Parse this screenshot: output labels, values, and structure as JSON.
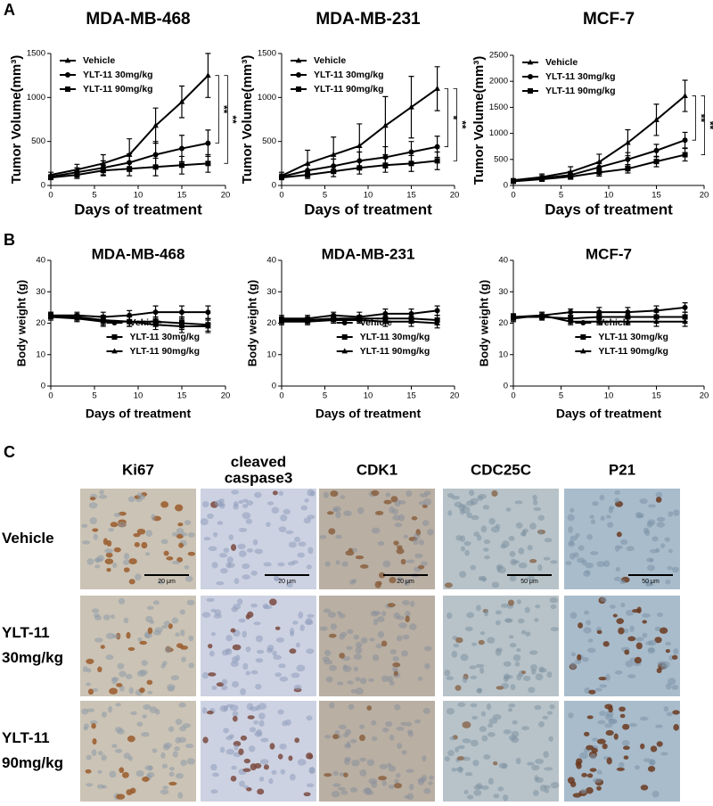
{
  "panel_labels": [
    "A",
    "B",
    "C"
  ],
  "chart_data": [
    {
      "type": "line",
      "title": "MDA-MB-468",
      "xlabel": "Days of treatment",
      "ylabel": "Tumor Volume(mm³)",
      "x": [
        0,
        3,
        6,
        9,
        12,
        15,
        18
      ],
      "xlim": [
        0,
        20
      ],
      "xticks": [
        0,
        5,
        10,
        15,
        20
      ],
      "ylim": [
        0,
        1500
      ],
      "yticks": [
        0,
        500,
        1000,
        1500
      ],
      "legend": "upper left",
      "series": [
        {
          "name": "Vehicle",
          "marker": "triangle",
          "color": "#000000",
          "values": [
            120,
            180,
            250,
            350,
            680,
            950,
            1250
          ],
          "errors": [
            30,
            60,
            100,
            180,
            200,
            180,
            250
          ]
        },
        {
          "name": "YLT-11 30mg/kg",
          "marker": "circle",
          "color": "#000000",
          "values": [
            100,
            150,
            200,
            260,
            350,
            420,
            480
          ],
          "errors": [
            20,
            50,
            80,
            100,
            150,
            150,
            150
          ]
        },
        {
          "name": "YLT-11 90mg/kg",
          "marker": "square",
          "color": "#000000",
          "values": [
            90,
            120,
            170,
            190,
            210,
            230,
            250
          ],
          "errors": [
            20,
            40,
            60,
            80,
            100,
            100,
            100
          ]
        }
      ],
      "annotations": [
        "**",
        "**"
      ]
    },
    {
      "type": "line",
      "title": "MDA-MB-231",
      "xlabel": "Days of treatment",
      "ylabel": "Tumor Volume(mm³)",
      "x": [
        0,
        3,
        6,
        9,
        12,
        15,
        18
      ],
      "xlim": [
        0,
        20
      ],
      "xticks": [
        0,
        5,
        10,
        15,
        20
      ],
      "ylim": [
        0,
        1500
      ],
      "yticks": [
        0,
        500,
        1000,
        1500
      ],
      "legend": "upper left",
      "series": [
        {
          "name": "Vehicle",
          "marker": "triangle",
          "color": "#000000",
          "values": [
            110,
            250,
            350,
            450,
            680,
            890,
            1100
          ],
          "errors": [
            40,
            150,
            200,
            250,
            330,
            350,
            250
          ]
        },
        {
          "name": "YLT-11 30mg/kg",
          "marker": "circle",
          "color": "#000000",
          "values": [
            100,
            170,
            220,
            280,
            320,
            380,
            440
          ],
          "errors": [
            30,
            60,
            80,
            100,
            120,
            120,
            120
          ]
        },
        {
          "name": "YLT-11 90mg/kg",
          "marker": "square",
          "color": "#000000",
          "values": [
            90,
            120,
            160,
            200,
            230,
            250,
            280
          ],
          "errors": [
            20,
            40,
            60,
            70,
            80,
            90,
            100
          ]
        }
      ],
      "annotations": [
        "*",
        "**"
      ]
    },
    {
      "type": "line",
      "title": "MCF-7",
      "xlabel": "Days of treatment",
      "ylabel": "Tumor Volume(mm³)",
      "x": [
        0,
        3,
        6,
        9,
        12,
        15,
        18
      ],
      "xlim": [
        0,
        20
      ],
      "xticks": [
        0,
        5,
        10,
        15,
        20
      ],
      "ylim": [
        0,
        2500
      ],
      "yticks": [
        0,
        500,
        1000,
        1500,
        2000,
        2500
      ],
      "legend": "upper left",
      "series": [
        {
          "name": "Vehicle",
          "marker": "triangle",
          "color": "#000000",
          "values": [
            100,
            160,
            260,
            450,
            820,
            1260,
            1720
          ],
          "errors": [
            30,
            60,
            100,
            150,
            250,
            300,
            300
          ]
        },
        {
          "name": "YLT-11 30mg/kg",
          "marker": "circle",
          "color": "#000000",
          "values": [
            90,
            140,
            200,
            350,
            500,
            670,
            870
          ],
          "errors": [
            20,
            50,
            70,
            100,
            130,
            120,
            150
          ]
        },
        {
          "name": "YLT-11 90mg/kg",
          "marker": "square",
          "color": "#000000",
          "values": [
            80,
            120,
            170,
            250,
            320,
            460,
            590
          ],
          "errors": [
            20,
            40,
            50,
            70,
            80,
            100,
            120
          ]
        }
      ],
      "annotations": [
        "**",
        "**"
      ]
    },
    {
      "type": "line",
      "title": "MDA-MB-468",
      "xlabel": "Days of treatment",
      "ylabel": "Body weight (g)",
      "x": [
        0,
        3,
        6,
        9,
        12,
        15,
        18
      ],
      "xlim": [
        0,
        20
      ],
      "xticks": [
        0,
        5,
        10,
        15,
        20
      ],
      "ylim": [
        0,
        40
      ],
      "yticks": [
        0,
        10,
        20,
        30,
        40
      ],
      "legend": "lower center",
      "series": [
        {
          "name": "Vehicle",
          "marker": "circle",
          "color": "#000000",
          "values": [
            22.5,
            22.5,
            22,
            22.5,
            23.5,
            23.5,
            23.5
          ],
          "errors": [
            1,
            1,
            1.5,
            1.5,
            2,
            2,
            2
          ]
        },
        {
          "name": "YLT-11 30mg/kg",
          "marker": "square",
          "color": "#000000",
          "values": [
            22.5,
            22,
            21,
            20.5,
            20.5,
            20,
            19.5
          ],
          "errors": [
            1,
            1,
            1.5,
            1.5,
            1.5,
            2,
            2
          ]
        },
        {
          "name": "YLT-11 90mg/kg",
          "marker": "triangle",
          "color": "#000000",
          "values": [
            22,
            21.5,
            20.5,
            20.5,
            19.5,
            19,
            19
          ],
          "errors": [
            1,
            1,
            1.5,
            1.5,
            1.5,
            2,
            2
          ]
        }
      ]
    },
    {
      "type": "line",
      "title": "MDA-MB-231",
      "xlabel": "Days of treatment",
      "ylabel": "Body weight (g)",
      "x": [
        0,
        3,
        6,
        9,
        12,
        15,
        18
      ],
      "xlim": [
        0,
        20
      ],
      "xticks": [
        0,
        5,
        10,
        15,
        20
      ],
      "ylim": [
        0,
        40
      ],
      "yticks": [
        0,
        10,
        20,
        30,
        40
      ],
      "legend": "lower center",
      "series": [
        {
          "name": "Vehicle",
          "marker": "circle",
          "color": "#000000",
          "values": [
            21.5,
            21.5,
            22.5,
            22,
            23,
            23,
            24
          ],
          "errors": [
            1,
            1,
            1,
            1.5,
            1.5,
            1.5,
            1.5
          ]
        },
        {
          "name": "YLT-11 30mg/kg",
          "marker": "square",
          "color": "#000000",
          "values": [
            21,
            21,
            21.5,
            21.5,
            21.5,
            21.5,
            21
          ],
          "errors": [
            1,
            1,
            1,
            1,
            1.5,
            1.5,
            1.5
          ]
        },
        {
          "name": "YLT-11 90mg/kg",
          "marker": "triangle",
          "color": "#000000",
          "values": [
            20.5,
            20.5,
            21,
            21,
            20.5,
            20.5,
            20
          ],
          "errors": [
            1,
            1,
            1,
            1,
            1.5,
            1.5,
            1.5
          ]
        }
      ]
    },
    {
      "type": "line",
      "title": "MCF-7",
      "xlabel": "Days of treatment",
      "ylabel": "Body weight (g)",
      "x": [
        0,
        3,
        6,
        9,
        12,
        15,
        18
      ],
      "xlim": [
        0,
        20
      ],
      "xticks": [
        0,
        5,
        10,
        15,
        20
      ],
      "ylim": [
        0,
        40
      ],
      "yticks": [
        0,
        10,
        20,
        30,
        40
      ],
      "legend": "lower center",
      "series": [
        {
          "name": "Vehicle",
          "marker": "circle",
          "color": "#000000",
          "values": [
            22,
            22.5,
            23.5,
            23.5,
            23.5,
            24,
            25
          ],
          "errors": [
            1,
            1,
            1,
            1.5,
            1.5,
            1.5,
            1.5
          ]
        },
        {
          "name": "YLT-11 30mg/kg",
          "marker": "square",
          "color": "#000000",
          "values": [
            22,
            22,
            21.5,
            22,
            22,
            22,
            22
          ],
          "errors": [
            1,
            1,
            1,
            1,
            1.5,
            1.5,
            1.5
          ]
        },
        {
          "name": "YLT-11 90mg/kg",
          "marker": "triangle",
          "color": "#000000",
          "values": [
            21.5,
            22.5,
            20.5,
            20.5,
            20.5,
            20.5,
            20.5
          ],
          "errors": [
            1,
            1,
            1,
            1,
            1,
            1.5,
            1.5
          ]
        }
      ]
    }
  ],
  "ihc": {
    "column_headers": [
      [
        "Ki67"
      ],
      [
        "cleaved",
        "caspase3"
      ],
      [
        "CDK1"
      ],
      [
        "CDC25C"
      ],
      [
        "P21"
      ]
    ],
    "row_labels": [
      [
        "Vehicle"
      ],
      [
        "YLT-11",
        "30mg/kg"
      ],
      [
        "YLT-11",
        "90mg/kg"
      ]
    ],
    "scale_bars": [
      "20 μm",
      "20 μm",
      "20 μm",
      "50 μm",
      "50 μm"
    ]
  }
}
